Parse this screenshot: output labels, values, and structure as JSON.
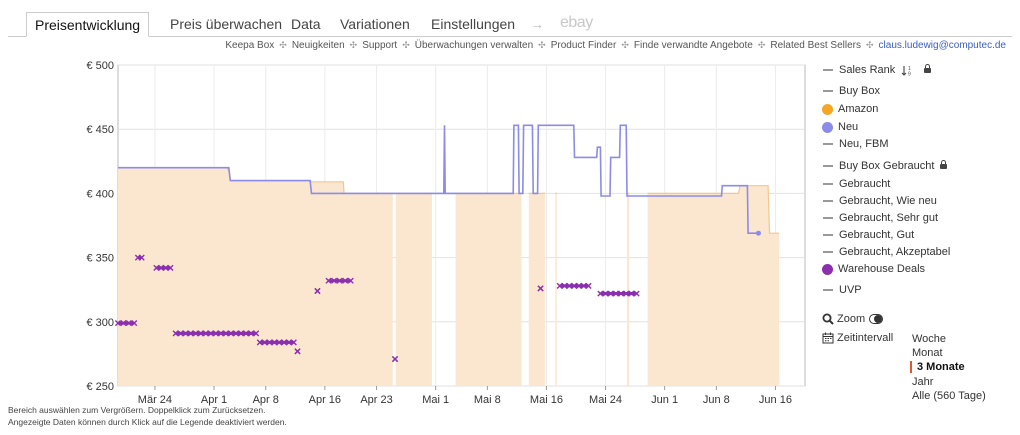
{
  "tabs": [
    {
      "label": "Preisentwicklung",
      "active": true
    },
    {
      "label": "Preis überwachen"
    },
    {
      "label": "Data"
    },
    {
      "label": "Variationen"
    },
    {
      "label": "Einstellungen"
    }
  ],
  "arrow_glyph": "→",
  "ebay_label": "ebay",
  "subnav": {
    "items": [
      "Keepa Box",
      "Neuigkeiten",
      "Support",
      "Überwachungen verwalten",
      "Product Finder",
      "Finde verwandte Angebote",
      "Related Best Sellers"
    ],
    "separator": "✣",
    "email": "claus.ludewig@computec.de"
  },
  "chart_data": {
    "type": "line",
    "currency": "€",
    "y_ticks": [
      250,
      300,
      350,
      400,
      450,
      500
    ],
    "y_labels": [
      "€ 250",
      "€ 300",
      "€ 350",
      "€ 400",
      "€ 450",
      "€ 500"
    ],
    "ylim": [
      250,
      500
    ],
    "x_ticks": [
      "Mär 24",
      "Apr 1",
      "Apr 8",
      "Apr 16",
      "Apr 23",
      "Mai 1",
      "Mai 8",
      "Mai 16",
      "Mai 24",
      "Jun 1",
      "Jun 8",
      "Jun 16"
    ],
    "x_tick_days": [
      5,
      13,
      20,
      28,
      35,
      43,
      50,
      58,
      66,
      74,
      81,
      89
    ],
    "xlim_days": [
      0,
      93
    ],
    "grid": true,
    "series": [
      {
        "name": "Amazon",
        "color": "#f5a623",
        "fill": true,
        "points": [
          [
            0,
            420
          ],
          [
            14.7,
            420
          ],
          [
            15,
            418
          ],
          [
            15.2,
            410
          ],
          [
            26,
            410
          ],
          [
            26.2,
            409
          ],
          [
            30.5,
            409
          ],
          [
            30.6,
            400
          ],
          [
            44,
            400
          ],
          [
            44.2,
            400
          ],
          [
            47,
            400
          ],
          [
            53,
            400
          ],
          [
            62,
            400
          ],
          [
            72,
            400
          ],
          [
            84,
            400
          ],
          [
            84.2,
            406
          ],
          [
            88,
            406
          ],
          [
            88.2,
            369
          ],
          [
            89.5,
            369
          ]
        ],
        "gaps": [
          [
            37.2,
            37.6
          ],
          [
            42.5,
            45.7
          ],
          [
            54.6,
            55.6
          ],
          [
            57.8,
            59.2
          ],
          [
            59.4,
            68.9
          ],
          [
            69.2,
            71.7
          ]
        ]
      },
      {
        "name": "Neu",
        "color": "#8b8be8",
        "points": [
          [
            0,
            420
          ],
          [
            15,
            420
          ],
          [
            15.2,
            410
          ],
          [
            26,
            410
          ],
          [
            26.2,
            400
          ],
          [
            44.1,
            400
          ],
          [
            44.2,
            453
          ],
          [
            44.3,
            400
          ],
          [
            53.5,
            400
          ],
          [
            53.6,
            453
          ],
          [
            54.2,
            453
          ],
          [
            54.3,
            400
          ],
          [
            54.8,
            400
          ],
          [
            54.9,
            453
          ],
          [
            56.1,
            453
          ],
          [
            56.2,
            400
          ],
          [
            56.8,
            400
          ],
          [
            56.9,
            453
          ],
          [
            61.7,
            453
          ],
          [
            61.8,
            428
          ],
          [
            64.8,
            428
          ],
          [
            64.9,
            436
          ],
          [
            65.3,
            436
          ],
          [
            65.4,
            398
          ],
          [
            66.6,
            398
          ],
          [
            66.7,
            428
          ],
          [
            67.9,
            428
          ],
          [
            68,
            453
          ],
          [
            68.8,
            453
          ],
          [
            68.9,
            398
          ],
          [
            81.7,
            398
          ],
          [
            81.8,
            406
          ],
          [
            85.2,
            406
          ],
          [
            85.3,
            369
          ],
          [
            86.7,
            369
          ]
        ]
      },
      {
        "name": "Warehouse Deals",
        "color": "#8b2fb0",
        "marker": "x",
        "segments": [
          [
            [
              0,
              299
            ],
            [
              2.2,
              299
            ]
          ],
          [
            [
              2.7,
              350
            ],
            [
              3.2,
              350
            ]
          ],
          [
            [
              5.2,
              342
            ],
            [
              7.1,
              342
            ]
          ],
          [
            [
              7.8,
              291
            ],
            [
              18.7,
              291
            ]
          ],
          [
            [
              19.2,
              284
            ],
            [
              23.8,
              284
            ]
          ],
          [
            [
              24.3,
              277
            ],
            [
              24.3,
              277
            ]
          ],
          [
            [
              27,
              324
            ],
            [
              27,
              324
            ]
          ],
          [
            [
              28.5,
              332
            ],
            [
              31.5,
              332
            ]
          ],
          [
            [
              37.5,
              271
            ],
            [
              37.5,
              271
            ]
          ],
          [
            [
              57.2,
              326
            ],
            [
              57.2,
              326
            ]
          ],
          [
            [
              59.8,
              328
            ],
            [
              63.7,
              328
            ]
          ],
          [
            [
              65.3,
              322
            ],
            [
              70.2,
              322
            ]
          ]
        ]
      }
    ]
  },
  "legend": {
    "items": [
      {
        "label": "Sales Rank",
        "kind": "dash",
        "color": "#999999",
        "extra": "rank-lock"
      },
      {
        "label": "Buy Box",
        "kind": "dash",
        "color": "#999999"
      },
      {
        "label": "Amazon",
        "kind": "dot",
        "color": "#f5a623"
      },
      {
        "label": "Neu",
        "kind": "dot",
        "color": "#8b8be8"
      },
      {
        "label": "Neu, FBM",
        "kind": "dash",
        "color": "#999999"
      },
      {
        "label": "Buy Box Gebraucht",
        "kind": "dash",
        "color": "#999999",
        "extra": "lock"
      },
      {
        "label": "Gebraucht",
        "kind": "dash",
        "color": "#999999"
      },
      {
        "label": "Gebraucht, Wie neu",
        "kind": "dash",
        "color": "#999999"
      },
      {
        "label": "Gebraucht, Sehr gut",
        "kind": "dash",
        "color": "#999999"
      },
      {
        "label": "Gebraucht, Gut",
        "kind": "dash",
        "color": "#999999"
      },
      {
        "label": "Gebraucht, Akzeptabel",
        "kind": "dash",
        "color": "#999999"
      },
      {
        "label": "Warehouse Deals",
        "kind": "dot",
        "color": "#8b2fb0"
      },
      {
        "label": "UVP",
        "kind": "dash",
        "color": "#999999"
      }
    ]
  },
  "controls": {
    "zoom_label": "Zoom",
    "interval_label": "Zeitintervall",
    "intervals": [
      {
        "label": "Woche"
      },
      {
        "label": "Monat"
      },
      {
        "label": "3 Monate",
        "selected": true
      },
      {
        "label": "Jahr"
      },
      {
        "label": "Alle (560 Tage)"
      }
    ]
  },
  "footer": {
    "line1": "Bereich auswählen zum Vergrößern. Doppelklick zum Zurücksetzen.",
    "line2": "Angezeigte Daten können durch Klick auf die Legende deaktiviert werden."
  },
  "icons": {
    "zoom": "magnifier-icon",
    "calendar": "calendar-icon",
    "lock": "lock-icon",
    "sort": "sort-numeric-icon",
    "toggle": "toggle-icon"
  }
}
